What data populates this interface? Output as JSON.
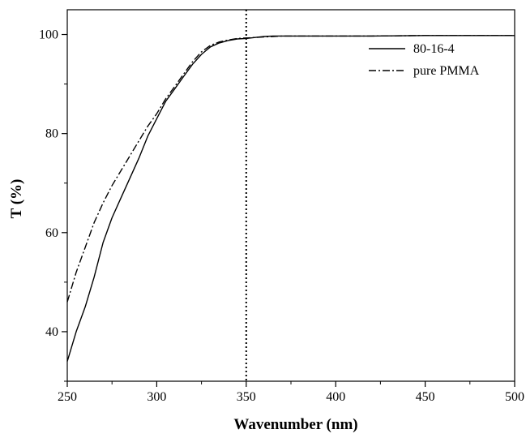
{
  "chart_data": {
    "type": "line",
    "title": "",
    "xlabel": "Wavenumber (nm)",
    "ylabel": "T (%)",
    "xlim": [
      250,
      500
    ],
    "ylim": [
      30,
      105
    ],
    "xticks": [
      250,
      300,
      350,
      400,
      450,
      500
    ],
    "yticks": [
      40,
      60,
      80,
      100
    ],
    "grid": false,
    "legend_position": "top-right",
    "reference_line": {
      "x": 350,
      "style": "dotted"
    },
    "series": [
      {
        "name": "80-16-4",
        "line_style": "solid",
        "color": "#000000",
        "x": [
          250,
          255,
          260,
          265,
          270,
          275,
          280,
          285,
          290,
          295,
          300,
          305,
          310,
          315,
          320,
          325,
          330,
          335,
          340,
          345,
          350,
          355,
          360,
          365,
          370,
          380,
          400,
          420,
          450,
          480,
          500
        ],
        "y": [
          34,
          40,
          45,
          51,
          58,
          63,
          67,
          71,
          75,
          79.5,
          83,
          86.5,
          89,
          91.5,
          94,
          96,
          97.5,
          98.3,
          98.8,
          99.1,
          99.2,
          99.4,
          99.6,
          99.7,
          99.7,
          99.7,
          99.7,
          99.7,
          99.8,
          99.8,
          99.8
        ]
      },
      {
        "name": "pure PMMA",
        "line_style": "dash-dot",
        "color": "#000000",
        "x": [
          250,
          255,
          260,
          265,
          270,
          275,
          280,
          285,
          290,
          295,
          300,
          305,
          310,
          315,
          320,
          325,
          330,
          335,
          340,
          345,
          350,
          355,
          360,
          365,
          370,
          380,
          400,
          420,
          450,
          480,
          500
        ],
        "y": [
          46,
          52,
          57,
          62,
          66,
          69.5,
          72.5,
          75.5,
          78.5,
          81.5,
          84,
          87,
          89.5,
          92,
          94.5,
          96.5,
          97.8,
          98.5,
          98.9,
          99.2,
          99.3,
          99.4,
          99.5,
          99.6,
          99.7,
          99.7,
          99.7,
          99.7,
          99.8,
          99.8,
          99.8
        ]
      }
    ]
  }
}
